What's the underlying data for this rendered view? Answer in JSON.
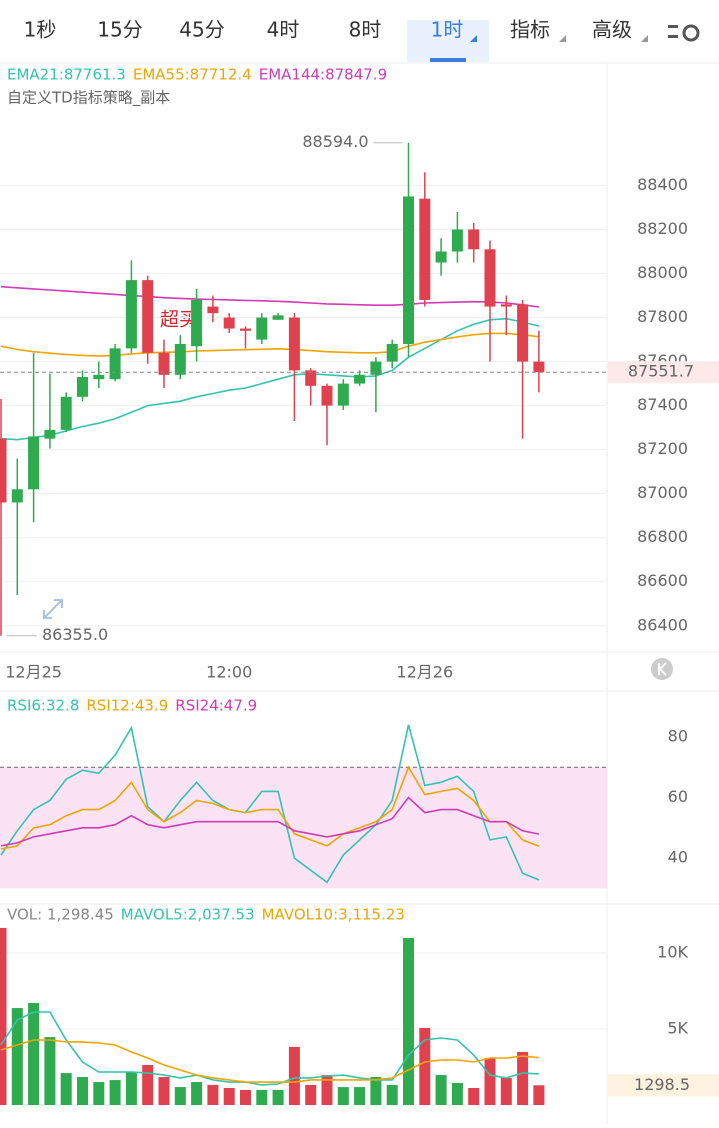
{
  "tabs": [
    "1秒",
    "15分",
    "45分",
    "4时",
    "8时",
    "1时",
    "指标",
    "高级"
  ],
  "chart_data": [
    {
      "type": "candlestick",
      "subtitle": "自定义TD指标策略_副本",
      "annotation": "超买",
      "categories": [
        null,
        null,
        "12月25",
        null,
        null,
        null,
        null,
        null,
        null,
        null,
        null,
        null,
        null,
        null,
        "12:00",
        null,
        null,
        null,
        null,
        null,
        null,
        null,
        null,
        null,
        null,
        null,
        "12月26",
        null,
        null,
        null,
        null,
        null,
        null,
        null
      ],
      "open": [
        87250,
        86960,
        87020,
        87250,
        87290,
        87440,
        87520,
        87520,
        87660,
        87970,
        87640,
        87540,
        87670,
        87850,
        87800,
        87750,
        87700,
        87790,
        87800,
        87560,
        87490,
        87400,
        87500,
        87540,
        87600,
        87680,
        88340,
        88050,
        88100,
        88200,
        88110,
        87860,
        87860,
        87600
      ],
      "high": [
        87430,
        87160,
        87640,
        87545,
        87460,
        87560,
        87600,
        87680,
        88060,
        87990,
        87700,
        87720,
        87930,
        87900,
        87820,
        87760,
        87820,
        87820,
        87820,
        87570,
        87500,
        87520,
        87560,
        87620,
        87700,
        88594,
        88460,
        88160,
        88280,
        88230,
        88150,
        87900,
        87880,
        87740
      ],
      "low": [
        86355,
        86540,
        86870,
        87205,
        87280,
        87420,
        87480,
        87510,
        87640,
        87590,
        87480,
        87520,
        87600,
        87780,
        87730,
        87660,
        87680,
        87790,
        87330,
        87400,
        87220,
        87380,
        87490,
        87370,
        87570,
        87620,
        87850,
        87990,
        88050,
        88050,
        87600,
        87720,
        87250,
        87460
      ],
      "close": [
        86960,
        87020,
        87260,
        87290,
        87440,
        87530,
        87540,
        87660,
        87970,
        87640,
        87540,
        87680,
        87880,
        87820,
        87750,
        87740,
        87800,
        87810,
        87560,
        87490,
        87400,
        87500,
        87540,
        87600,
        87680,
        88350,
        87880,
        88100,
        88200,
        88110,
        87850,
        87850,
        87600,
        87551.7
      ],
      "up_color": "#2eaa4f",
      "down_color": "#e0414f",
      "series": [
        {
          "name": "EMA21:87761.3",
          "color": "#33c4b0",
          "values": [
            87250,
            87245,
            87255,
            87265,
            87285,
            87305,
            87320,
            87340,
            87370,
            87400,
            87410,
            87420,
            87440,
            87455,
            87470,
            87480,
            87500,
            87520,
            87540,
            87545,
            87540,
            87535,
            87530,
            87535,
            87560,
            87620,
            87660,
            87700,
            87740,
            87770,
            87790,
            87795,
            87780,
            87761.3
          ]
        },
        {
          "name": "EMA55:87712.4",
          "color": "#f0a500",
          "values": [
            87670,
            87655,
            87645,
            87638,
            87632,
            87628,
            87625,
            87628,
            87635,
            87640,
            87642,
            87644,
            87648,
            87650,
            87652,
            87654,
            87656,
            87658,
            87655,
            87650,
            87645,
            87642,
            87640,
            87640,
            87645,
            87670,
            87688,
            87700,
            87712,
            87722,
            87728,
            87728,
            87722,
            87712.4
          ]
        },
        {
          "name": "EMA144:87847.9",
          "color": "#d13bb5",
          "values": [
            87940,
            87935,
            87930,
            87925,
            87920,
            87915,
            87910,
            87905,
            87900,
            87895,
            87890,
            87887,
            87884,
            87882,
            87880,
            87878,
            87876,
            87874,
            87870,
            87866,
            87862,
            87860,
            87858,
            87856,
            87856,
            87860,
            87866,
            87868,
            87870,
            87872,
            87870,
            87866,
            87858,
            87847.9
          ]
        }
      ],
      "ylim": [
        86290,
        88720
      ],
      "yticks": [
        86400,
        86600,
        86800,
        87000,
        87200,
        87400,
        87600,
        87800,
        88000,
        88200,
        88400
      ],
      "grid": true,
      "high_label": "88594.0",
      "low_label": "86355.0",
      "last_label": "87551.7"
    },
    {
      "type": "line",
      "series": [
        {
          "name": "RSI6:32.8",
          "color": "#33c4b0",
          "values": [
            41,
            49,
            56,
            59,
            66,
            69,
            68,
            74,
            83,
            57,
            52,
            59,
            65,
            59,
            56,
            55,
            62,
            62,
            40,
            36,
            32,
            41,
            46,
            51,
            59,
            84,
            64,
            65,
            67,
            62,
            46,
            47,
            35,
            32.8
          ]
        },
        {
          "name": "RSI12:43.9",
          "color": "#f0a500",
          "values": [
            43,
            44,
            50,
            51,
            54,
            56,
            56,
            59,
            65,
            56,
            52,
            55,
            59,
            58,
            56,
            55,
            56,
            56,
            48,
            46,
            44,
            48,
            50,
            52,
            56,
            70,
            61,
            62,
            63,
            59,
            52,
            52,
            46,
            43.9
          ]
        },
        {
          "name": "RSI24:47.9",
          "color": "#d13bb5",
          "values": [
            44,
            45,
            47,
            48,
            49,
            50,
            50,
            51,
            54,
            51,
            50,
            51,
            52,
            52,
            52,
            52,
            52,
            52,
            49,
            48,
            47,
            48,
            49,
            51,
            53,
            60,
            55,
            56,
            56,
            54,
            52,
            52,
            49,
            47.9
          ]
        }
      ],
      "ylim": [
        24.5,
        94.5
      ],
      "yticks": [
        40,
        60,
        80
      ],
      "band": [
        30,
        70
      ],
      "band_color": "#fbe3f5"
    },
    {
      "type": "bar",
      "series": [
        {
          "name": "VOL: 1,298.45",
          "color": "#888888",
          "values": [
            11650,
            6380,
            6710,
            4470,
            2100,
            1840,
            1510,
            1640,
            2170,
            2630,
            1840,
            1180,
            1510,
            1320,
            1120,
            990,
            990,
            990,
            3820,
            1320,
            1970,
            1180,
            1180,
            1840,
            1320,
            10990,
            5070,
            1970,
            1450,
            1120,
            3090,
            1780,
            3490,
            1298.45
          ]
        },
        {
          "name": "MAVOL5:2,037.53",
          "color": "#33c4b0",
          "values": [
            3950,
            5590,
            6120,
            6120,
            4280,
            2830,
            2170,
            2170,
            2170,
            2110,
            1970,
            1780,
            1970,
            1650,
            1510,
            1510,
            1320,
            1380,
            1780,
            1780,
            1910,
            1970,
            1780,
            1650,
            1650,
            3290,
            4280,
            4410,
            4280,
            3290,
            1970,
            1780,
            2110,
            2037.53
          ]
        },
        {
          "name": "MAVOL10:3,115.23",
          "color": "#f0a500",
          "values": [
            3620,
            3950,
            4280,
            4280,
            4150,
            4150,
            4080,
            3950,
            3490,
            3090,
            2630,
            2300,
            1970,
            1780,
            1650,
            1510,
            1510,
            1510,
            1510,
            1650,
            1650,
            1650,
            1650,
            1650,
            1780,
            2300,
            2830,
            2960,
            2960,
            2830,
            3090,
            3090,
            3220,
            3115.23
          ]
        }
      ],
      "ylim": [
        0,
        13160
      ],
      "yticks": [
        {
          "value": 5000,
          "label": "5K"
        },
        {
          "value": 10000,
          "label": "10K"
        }
      ],
      "last_label": "1298.5"
    }
  ]
}
